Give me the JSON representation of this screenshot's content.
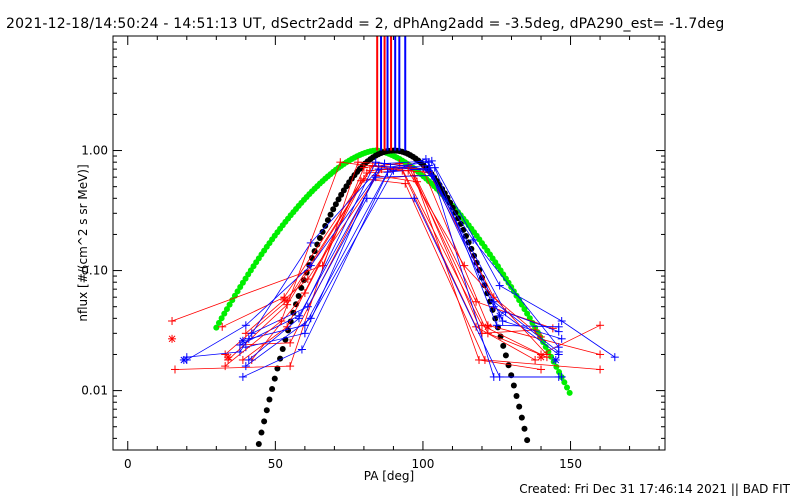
{
  "title": "2021-12-18/14:50:24 - 14:51:13 UT, dSectr2add = 2, dPhAng2add = -3.5deg, dPA290_est= -1.7deg",
  "footer": "Created: Fri Dec 31 17:46:14 2021 || BAD FIT",
  "chart_data": {
    "type": "line",
    "title": "2021-12-18/14:50:24 - 14:51:13 UT, dSectr2add = 2, dPhAng2add = -3.5deg, dPA290_est= -1.7deg",
    "xlabel": "PA [deg]",
    "ylabel": "nflux [#/(cm^2 s sr MeV)]",
    "xlim": [
      -5,
      182
    ],
    "ylim": [
      0.0032,
      9
    ],
    "yscale": "log",
    "x_ticks": [
      0,
      50,
      100,
      150
    ],
    "x_tick_labels": [
      "0",
      "50",
      "100",
      "150"
    ],
    "y_ticks": [
      0.01,
      0.1,
      1.0
    ],
    "y_tick_labels": [
      "0.01",
      "0.10",
      "1.00"
    ],
    "colors": {
      "red": "#ff0000",
      "blue": "#0000ff",
      "green": "#00ee00",
      "black": "#000000"
    },
    "vertical_lines": [
      {
        "x": 84.5,
        "color": "#ff0000"
      },
      {
        "x": 85.8,
        "color": "#0000ff"
      },
      {
        "x": 87.0,
        "color": "#ff0000"
      },
      {
        "x": 88.0,
        "color": "#0000ff"
      },
      {
        "x": 89.2,
        "color": "#ff0000"
      },
      {
        "x": 90.6,
        "color": "#0000ff"
      },
      {
        "x": 92.0,
        "color": "#0000ff"
      },
      {
        "x": 94.0,
        "color": "#0000ff"
      }
    ],
    "series": [
      {
        "color": "#ff0000",
        "x": [
          15,
          66,
          80,
          92,
          120,
          140,
          160
        ],
        "y": [
          0.038,
          0.11,
          0.72,
          0.78,
          0.035,
          0.02,
          0.035
        ]
      },
      {
        "color": "#ff0000",
        "x": [
          16,
          55,
          78,
          95,
          122,
          142
        ],
        "y": [
          0.015,
          0.016,
          0.8,
          0.75,
          0.03,
          0.019
        ]
      },
      {
        "color": "#ff0000",
        "x": [
          32,
          53,
          81,
          93,
          118,
          138
        ],
        "y": [
          0.034,
          0.06,
          0.65,
          0.68,
          0.034,
          0.018
        ]
      },
      {
        "color": "#ff0000",
        "x": [
          34,
          54,
          83,
          100,
          122,
          160
        ],
        "y": [
          0.018,
          0.052,
          0.75,
          0.7,
          0.035,
          0.02
        ]
      },
      {
        "color": "#ff0000",
        "x": [
          33,
          54,
          82,
          96,
          118,
          144
        ],
        "y": [
          0.02,
          0.056,
          0.68,
          0.72,
          0.055,
          0.033
        ]
      },
      {
        "color": "#ff0000",
        "x": [
          38,
          55,
          84,
          98,
          120,
          138
        ],
        "y": [
          0.024,
          0.025,
          0.62,
          0.55,
          0.03,
          0.032
        ]
      },
      {
        "color": "#ff0000",
        "x": [
          40,
          61,
          86,
          102,
          124,
          140
        ],
        "y": [
          0.03,
          0.085,
          0.7,
          0.66,
          0.06,
          0.028
        ]
      },
      {
        "color": "#ff0000",
        "x": [
          39,
          54,
          79,
          97,
          119,
          140
        ],
        "y": [
          0.018,
          0.034,
          0.56,
          0.62,
          0.018,
          0.015
        ]
      },
      {
        "color": "#ff0000",
        "x": [
          42,
          60,
          80,
          94,
          121,
          160
        ],
        "y": [
          0.018,
          0.065,
          0.58,
          0.53,
          0.018,
          0.015
        ]
      },
      {
        "color": "#0000ff",
        "x": [
          20,
          40,
          62,
          87,
          103,
          126,
          147,
          165
        ],
        "y": [
          0.018,
          0.035,
          0.11,
          0.78,
          0.82,
          0.075,
          0.038,
          0.019
        ]
      },
      {
        "color": "#0000ff",
        "x": [
          20,
          38,
          62,
          85,
          102,
          124,
          146
        ],
        "y": [
          0.019,
          0.021,
          0.17,
          0.7,
          0.75,
          0.055,
          0.021
        ]
      },
      {
        "color": "#0000ff",
        "x": [
          38,
          58,
          84,
          103,
          124,
          146
        ],
        "y": [
          0.024,
          0.042,
          0.6,
          0.62,
          0.05,
          0.02
        ]
      },
      {
        "color": "#0000ff",
        "x": [
          39,
          59,
          89,
          102,
          124,
          146
        ],
        "y": [
          0.013,
          0.022,
          0.73,
          0.8,
          0.013,
          0.013
        ]
      },
      {
        "color": "#0000ff",
        "x": [
          40,
          62,
          90,
          101,
          127,
          147
        ],
        "y": [
          0.016,
          0.04,
          0.68,
          0.85,
          0.038,
          0.027
        ]
      },
      {
        "color": "#0000ff",
        "x": [
          41,
          60,
          88,
          104,
          125,
          146
        ],
        "y": [
          0.027,
          0.035,
          0.66,
          0.72,
          0.035,
          0.034
        ]
      },
      {
        "color": "#0000ff",
        "x": [
          42,
          61,
          81,
          97,
          126,
          147
        ],
        "y": [
          0.03,
          0.05,
          0.4,
          0.4,
          0.013,
          0.013
        ]
      },
      {
        "color": "#0000ff",
        "x": [
          40,
          60,
          85,
          102,
          128,
          146
        ],
        "y": [
          0.023,
          0.03,
          0.74,
          0.68,
          0.045,
          0.031
        ]
      },
      {
        "color": "#ff0000",
        "x": [
          33,
          52,
          72,
          95,
          114,
          142
        ],
        "y": [
          0.016,
          0.038,
          0.8,
          0.68,
          0.11,
          0.02
        ]
      },
      {
        "color": "#0000ff",
        "x": [
          41,
          58,
          84,
          101,
          117,
          146
        ],
        "y": [
          0.018,
          0.04,
          0.8,
          0.7,
          0.18,
          0.023
        ]
      }
    ],
    "markers": [
      {
        "x": 15,
        "y": 0.027,
        "color": "#ff0000",
        "symbol": "asterisk"
      },
      {
        "x": 34,
        "y": 0.019,
        "color": "#ff0000",
        "symbol": "asterisk"
      },
      {
        "x": 53,
        "y": 0.057,
        "color": "#ff0000",
        "symbol": "asterisk"
      },
      {
        "x": 122,
        "y": 0.034,
        "color": "#ff0000",
        "symbol": "asterisk"
      },
      {
        "x": 140,
        "y": 0.019,
        "color": "#ff0000",
        "symbol": "asterisk"
      },
      {
        "x": 19,
        "y": 0.018,
        "color": "#0000ff",
        "symbol": "asterisk"
      },
      {
        "x": 39,
        "y": 0.026,
        "color": "#0000ff",
        "symbol": "asterisk"
      },
      {
        "x": 126,
        "y": 0.042,
        "color": "#0000ff",
        "symbol": "asterisk"
      },
      {
        "x": 145,
        "y": 0.018,
        "color": "#0000ff",
        "symbol": "asterisk"
      }
    ],
    "fits": [
      {
        "color": "#00ee00",
        "center": 84,
        "width": 20,
        "exponent": 1.6
      },
      {
        "color": "#000000",
        "center": 90,
        "width": 16,
        "exponent": 2.0
      }
    ]
  }
}
